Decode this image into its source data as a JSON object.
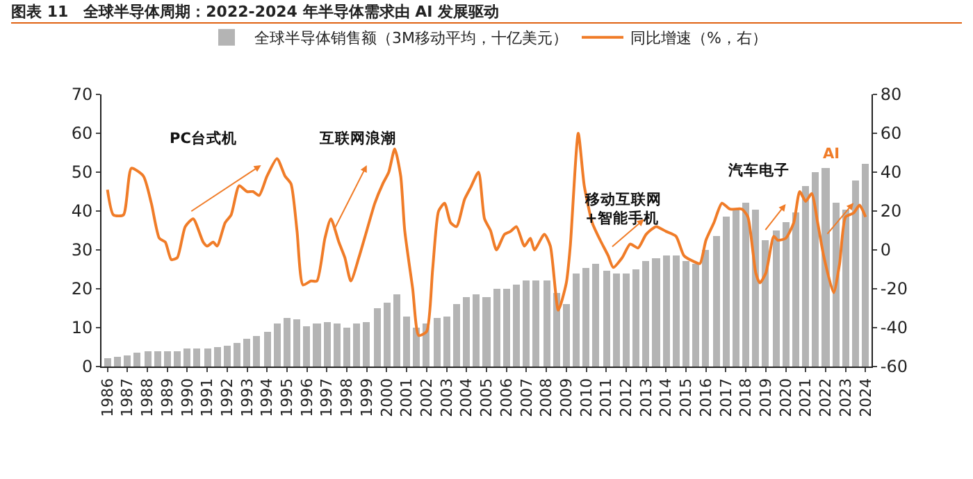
{
  "chart_data": {
    "type": "bar",
    "title": "图表 11　全球半导体周期：2022-2024 年半导体需求由 AI 发展驱动",
    "series": [
      {
        "name": "全球半导体销售额（3M移动平均，十亿美元）",
        "color": "#b4b4b4",
        "x": [
          1986,
          1986.5,
          1987,
          1987.5,
          1988,
          1988.5,
          1989,
          1989.5,
          1990,
          1990.5,
          1991,
          1991.5,
          1992,
          1992.5,
          1993,
          1993.5,
          1994,
          1994.5,
          1995,
          1995.5,
          1996,
          1996.5,
          1997,
          1997.5,
          1998,
          1998.5,
          1999,
          1999.5,
          2000,
          2000.5,
          2001,
          2001.5,
          2002,
          2002.5,
          2003,
          2003.5,
          2004,
          2004.5,
          2005,
          2005.5,
          2006,
          2006.5,
          2007,
          2007.5,
          2008,
          2008.5,
          2009,
          2009.5,
          2010,
          2010.5,
          2011,
          2011.5,
          2012,
          2012.5,
          2013,
          2013.5,
          2014,
          2014.5,
          2015,
          2015.5,
          2016,
          2016.5,
          2017,
          2017.5,
          2018,
          2018.5,
          2019,
          2019.5,
          2020,
          2020.5,
          2021,
          2021.5,
          2022,
          2022.5,
          2023,
          2023.5,
          2024
        ],
        "values": [
          2,
          2.5,
          3,
          3.5,
          4,
          4,
          4,
          4,
          4.5,
          4.5,
          4.5,
          5,
          5.5,
          6,
          7,
          8,
          9,
          11,
          12.5,
          12,
          10.5,
          11,
          11.5,
          11,
          10,
          11,
          11.5,
          15,
          16.5,
          18.5,
          13,
          10,
          11,
          12.5,
          13,
          16,
          18,
          18.5,
          18,
          20,
          20,
          21,
          22,
          22,
          22,
          19,
          16,
          24,
          25.5,
          26.5,
          24.5,
          24,
          24,
          25,
          27,
          28,
          28.5,
          28.5,
          27,
          26.5,
          30,
          33.5,
          38.5,
          40.5,
          42,
          40.5,
          32.5,
          35,
          37,
          39.5,
          46.5,
          50,
          51,
          42,
          40.5,
          48,
          52
        ]
      },
      {
        "name": "同比增速（%，右）",
        "type": "line",
        "axis": "y2",
        "color": "#f07c28",
        "x": [
          1986,
          1986.3,
          1986.8,
          1987.2,
          1987.8,
          1988.2,
          1988.6,
          1988.9,
          1989.2,
          1989.5,
          1989.9,
          1990.3,
          1990.8,
          1991,
          1991.3,
          1991.5,
          1991.9,
          1992.2,
          1992.6,
          1993,
          1993.3,
          1993.6,
          1994,
          1994.5,
          1994.9,
          1995.2,
          1995.5,
          1995.8,
          1996.2,
          1996.5,
          1996.9,
          1997.2,
          1997.6,
          1997.9,
          1998.2,
          1998.6,
          1999,
          1999.4,
          1999.8,
          2000.1,
          2000.4,
          2000.7,
          2000.9,
          2001.3,
          2001.6,
          2002,
          2002.3,
          2002.6,
          2002.9,
          2003.2,
          2003.5,
          2003.9,
          2004.2,
          2004.6,
          2004.9,
          2005.2,
          2005.5,
          2005.9,
          2006.2,
          2006.5,
          2006.9,
          2007.2,
          2007.4,
          2007.9,
          2008.2,
          2008.6,
          2009,
          2009.2,
          2009.6,
          2009.9,
          2010.3,
          2010.7,
          2011.1,
          2011.35,
          2011.8,
          2012.2,
          2012.6,
          2013,
          2013.5,
          2014,
          2014.5,
          2014.9,
          2015.4,
          2015.7,
          2016,
          2016.4,
          2016.8,
          2017.2,
          2017.8,
          2018.1,
          2018.5,
          2018.7,
          2019,
          2019.4,
          2019.6,
          2020,
          2020.4,
          2020.7,
          2021,
          2021.3,
          2021.6,
          2021.9,
          2022.4,
          2022.7,
          2023,
          2023.4,
          2023.7,
          2024
        ],
        "values": [
          31,
          18,
          18,
          42,
          38,
          24,
          6,
          4,
          -5,
          -4,
          12,
          16,
          4,
          2,
          4,
          2,
          14,
          18,
          33,
          30,
          30,
          28,
          38,
          47,
          38,
          34,
          10,
          -18,
          -16,
          -16,
          6,
          16,
          4,
          -4,
          -16,
          -4,
          10,
          24,
          34,
          40,
          52,
          38,
          10,
          -20,
          -44,
          -42,
          -10,
          20,
          24,
          14,
          12,
          26,
          32,
          40,
          16,
          10,
          0,
          8,
          9.5,
          12,
          2,
          6,
          0,
          8,
          2,
          -31,
          -17,
          2,
          60,
          33,
          14,
          5,
          -3,
          -9,
          -4,
          3,
          1,
          8,
          12,
          9.5,
          7,
          -3,
          -6,
          -7,
          5,
          14,
          24,
          21,
          21,
          17,
          -12,
          -17,
          -12,
          7,
          5,
          6,
          14,
          30,
          25,
          29,
          14,
          -3,
          -22,
          -7,
          17,
          19,
          23,
          17
        ]
      }
    ],
    "xlim": [
      1985.7,
      2024.3
    ],
    "xticks": [
      1986,
      1987,
      1988,
      1989,
      1990,
      1991,
      1992,
      1993,
      1994,
      1995,
      1996,
      1997,
      1998,
      1999,
      2000,
      2001,
      2002,
      2003,
      2004,
      2005,
      2006,
      2007,
      2008,
      2009,
      2010,
      2011,
      2012,
      2013,
      2014,
      2015,
      2016,
      2017,
      2018,
      2019,
      2020,
      2021,
      2022,
      2023,
      2024
    ],
    "ylim": [
      0,
      70
    ],
    "yticks": [
      0,
      10,
      20,
      30,
      40,
      50,
      60,
      70
    ],
    "y2lim": [
      -60,
      80
    ],
    "y2ticks": [
      -60,
      -40,
      -20,
      0,
      20,
      40,
      60,
      80
    ],
    "legend": "top",
    "grid": false,
    "annotations": [
      "PC台式机",
      "互联网浪潮",
      "移动互联网\n+智能手机",
      "汽车电子",
      "AI"
    ]
  }
}
